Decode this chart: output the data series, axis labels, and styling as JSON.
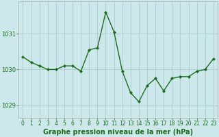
{
  "x": [
    0,
    1,
    2,
    3,
    4,
    5,
    6,
    7,
    8,
    9,
    10,
    11,
    12,
    13,
    14,
    15,
    16,
    17,
    18,
    19,
    20,
    21,
    22,
    23
  ],
  "y": [
    1030.35,
    1030.2,
    1030.1,
    1030.0,
    1030.0,
    1030.1,
    1030.1,
    1029.95,
    1030.55,
    1030.6,
    1031.6,
    1031.05,
    1029.95,
    1029.35,
    1029.1,
    1029.55,
    1029.75,
    1029.4,
    1029.75,
    1029.8,
    1029.8,
    1029.95,
    1030.0,
    1030.3
  ],
  "line_color": "#1a6b1a",
  "marker_color": "#1a6b1a",
  "bg_color": "#cce8ea",
  "plot_bg_color": "#cce8ea",
  "grid_color": "#aaccce",
  "xlabel": "Graphe pression niveau de la mer (hPa)",
  "ylabel_ticks": [
    1029,
    1030,
    1031
  ],
  "xtick_labels": [
    "0",
    "1",
    "2",
    "3",
    "4",
    "5",
    "6",
    "7",
    "8",
    "9",
    "10",
    "11",
    "12",
    "13",
    "14",
    "15",
    "16",
    "17",
    "18",
    "19",
    "20",
    "21",
    "22",
    "23"
  ],
  "xlim": [
    -0.5,
    23.5
  ],
  "ylim": [
    1028.65,
    1031.9
  ],
  "tick_color": "#1a6b1a",
  "spine_color": "#aaaaaa",
  "tick_fontsize": 5.5,
  "ytick_fontsize": 6.0,
  "xlabel_fontsize": 7.0,
  "xlabel_color": "#1a6b1a"
}
